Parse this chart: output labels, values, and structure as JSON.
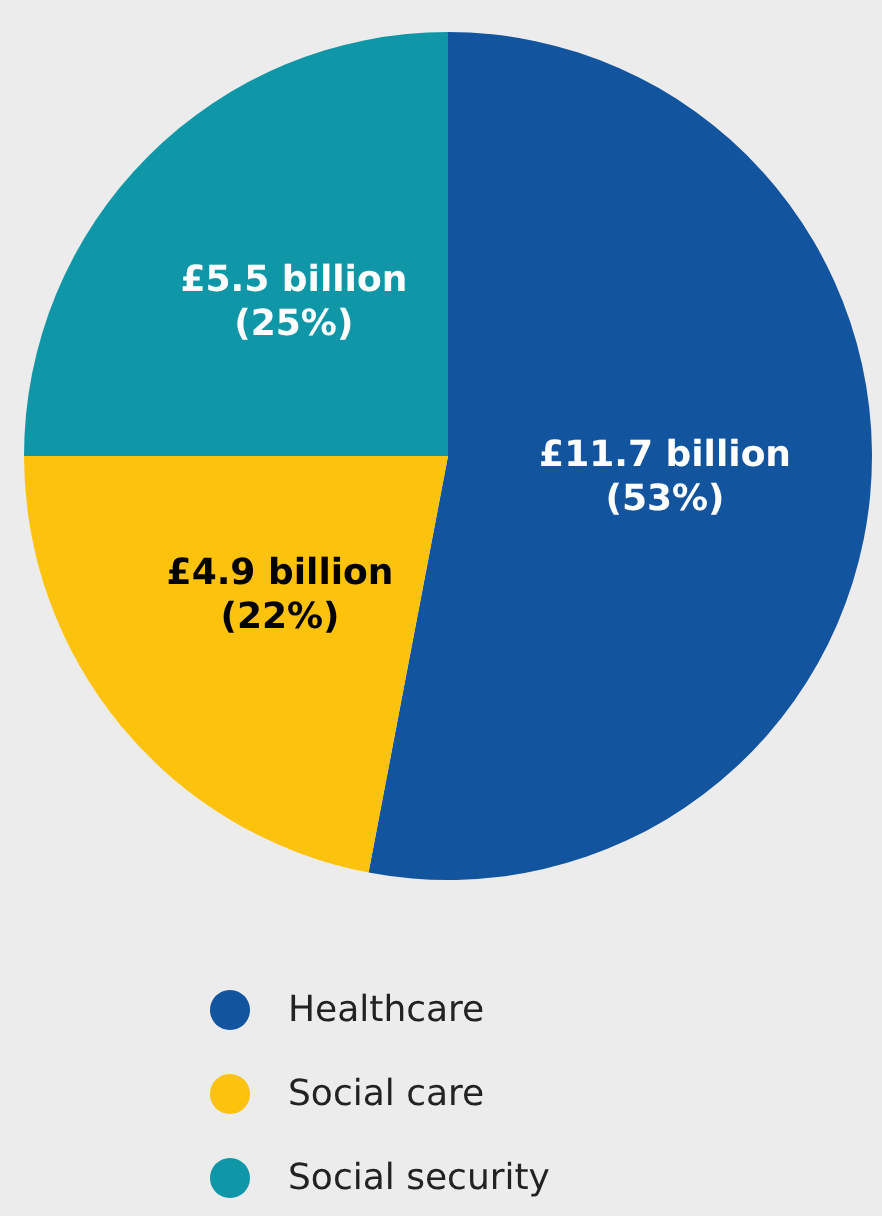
{
  "chart_data": {
    "type": "pie",
    "categories": [
      "Healthcare",
      "Social care",
      "Social security"
    ],
    "values": [
      53,
      22,
      25
    ],
    "colors": [
      "#13549f",
      "#fdc20b",
      "#0f97a8"
    ],
    "value_labels": [
      "£11.7 billion (53%)",
      "£4.9 billion (22%)",
      "£5.5 billion (25%)"
    ],
    "legend": "bottom"
  }
}
